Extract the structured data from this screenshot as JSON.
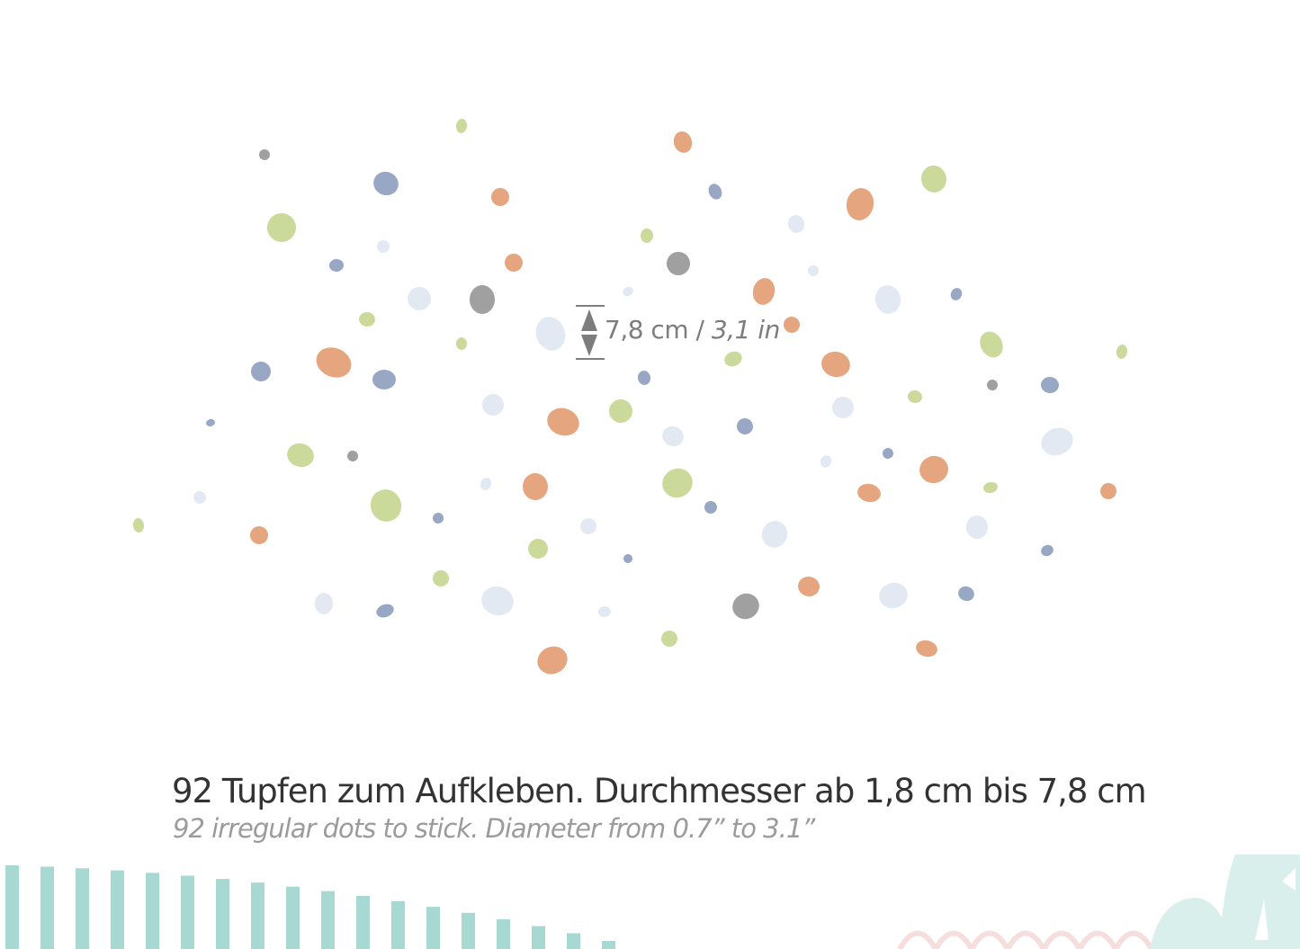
{
  "measurement": {
    "metric": "7,8 cm",
    "separator": "/",
    "imperial": "3,1 in"
  },
  "caption": {
    "german": "92 Tupfen zum Aufkleben. Durchmesser ab 1,8 cm bis 7,8 cm",
    "english": "92 irregular dots to stick. Diameter from 0.7” to 3.1”"
  },
  "colors": {
    "orange": "#e5a67f",
    "green": "#cbda9b",
    "blue": "#98a8c4",
    "light": "#e3e9f3",
    "gray": "#a0a0a0",
    "stripe": "#a7d8d2",
    "hill": "#d9efec",
    "arch": "#f6dede",
    "text": "#333333",
    "subtext": "#9b9b9b"
  }
}
